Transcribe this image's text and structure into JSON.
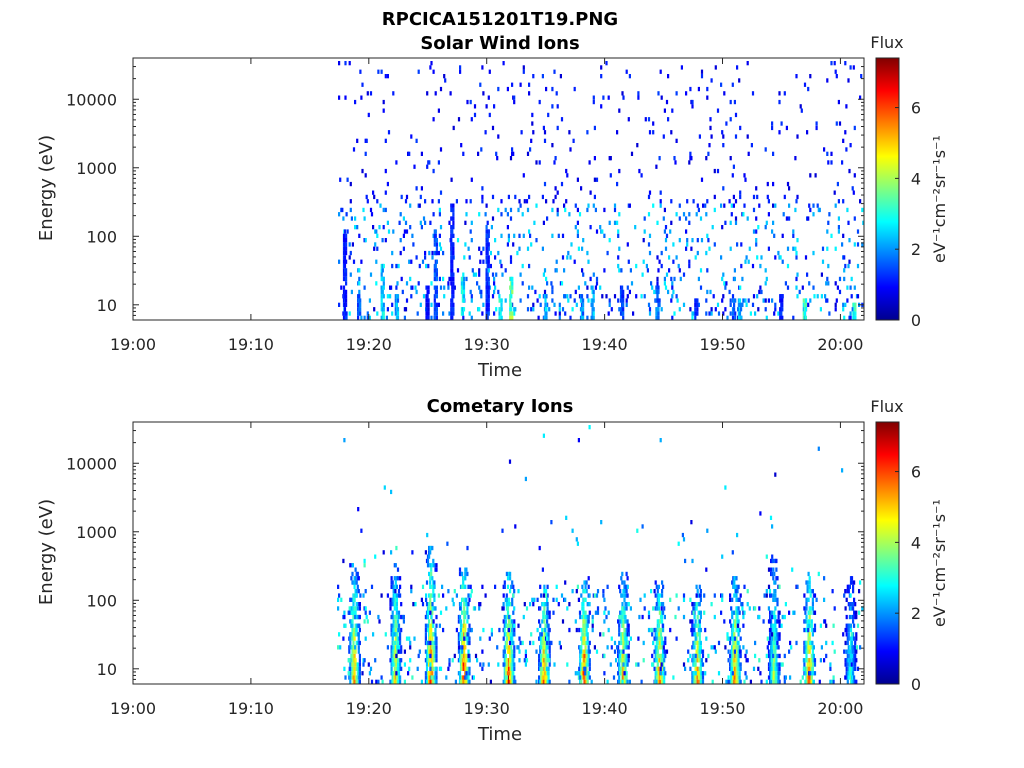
{
  "figure": {
    "title": "RPCICA151201T19.PNG"
  },
  "colorbar": {
    "title": "Flux",
    "label": "eV⁻¹cm⁻²sr⁻¹s⁻¹",
    "ticks": [
      0,
      2,
      4,
      6
    ],
    "range": [
      0,
      7.4
    ],
    "colormap": "jet"
  },
  "chart_data": [
    {
      "type": "heatmap",
      "title": "Solar Wind Ions",
      "xlabel": "Time",
      "ylabel": "Energy (eV)",
      "yscale": "log",
      "xlim": [
        "19:00",
        "20:02"
      ],
      "ylim": [
        6,
        40000
      ],
      "xticks": [
        "19:00",
        "19:10",
        "19:20",
        "19:30",
        "19:40",
        "19:50",
        "20:00"
      ],
      "yticks": [
        10,
        100,
        1000,
        10000
      ],
      "data_start": "19:17",
      "description_of_values": "sparse low flux (mostly 0.5-3) scattered 10 eV - 20 keV after 19:17, a few green spikes at low energy",
      "bands": [
        {
          "t": "19:17.8",
          "e_lo": 6,
          "e_hi": 120,
          "flux": 1.2
        },
        {
          "t": "19:19.0",
          "e_lo": 6,
          "e_hi": 15,
          "flux": 1.6
        },
        {
          "t": "19:21.0",
          "e_lo": 6,
          "e_hi": 40,
          "flux": 2.6
        },
        {
          "t": "19:22.2",
          "e_lo": 6,
          "e_hi": 15,
          "flux": 2.2
        },
        {
          "t": "19:24.8",
          "e_lo": 6,
          "e_hi": 20,
          "flux": 1.0
        },
        {
          "t": "19:25.5",
          "e_lo": 6,
          "e_hi": 130,
          "flux": 1.5
        },
        {
          "t": "19:26.9",
          "e_lo": 6,
          "e_hi": 280,
          "flux": 1.2
        },
        {
          "t": "19:27.8",
          "e_lo": 6,
          "e_hi": 25,
          "flux": 2.8
        },
        {
          "t": "19:29.9",
          "e_lo": 6,
          "e_hi": 120,
          "flux": 1.3
        },
        {
          "t": "19:31.0",
          "e_lo": 6,
          "e_hi": 12,
          "flux": 3.0
        },
        {
          "t": "19:31.9",
          "e_lo": 6,
          "e_hi": 25,
          "flux": 3.6
        },
        {
          "t": "19:34.8",
          "e_lo": 6,
          "e_hi": 15,
          "flux": 2.4
        },
        {
          "t": "19:37.9",
          "e_lo": 6,
          "e_hi": 14,
          "flux": 2.0
        },
        {
          "t": "19:38.8",
          "e_lo": 6,
          "e_hi": 20,
          "flux": 2.2
        },
        {
          "t": "19:41.3",
          "e_lo": 6,
          "e_hi": 18,
          "flux": 1.4
        },
        {
          "t": "19:44.3",
          "e_lo": 6,
          "e_hi": 18,
          "flux": 1.8
        },
        {
          "t": "19:47.6",
          "e_lo": 6,
          "e_hi": 12,
          "flux": 1.2
        },
        {
          "t": "19:50.8",
          "e_lo": 6,
          "e_hi": 15,
          "flux": 1.6
        },
        {
          "t": "19:51.3",
          "e_lo": 6,
          "e_hi": 12,
          "flux": 2.3
        },
        {
          "t": "19:54.8",
          "e_lo": 6,
          "e_hi": 14,
          "flux": 1.2
        },
        {
          "t": "19:56.8",
          "e_lo": 6,
          "e_hi": 12,
          "flux": 3.0
        },
        {
          "t": "20:01.0",
          "e_lo": 6,
          "e_hi": 10,
          "flux": 3.2
        }
      ]
    },
    {
      "type": "heatmap",
      "title": "Cometary Ions",
      "xlabel": "Time",
      "ylabel": "Energy (eV)",
      "yscale": "log",
      "xlim": [
        "19:00",
        "20:02"
      ],
      "ylim": [
        6,
        40000
      ],
      "xticks": [
        "19:00",
        "19:10",
        "19:20",
        "19:30",
        "19:40",
        "19:50",
        "20:00"
      ],
      "yticks": [
        10,
        100,
        1000,
        10000
      ],
      "data_start": "19:17",
      "description_of_values": "periodic bursts (~3.3 min period) with peak flux ~6 at 6-15 eV, decreasing to ~2-3 near 100-300 eV",
      "bursts": [
        {
          "t": "19:18.7",
          "e_hi": 330,
          "peak_flux": 5.5
        },
        {
          "t": "19:22.2",
          "e_hi": 350,
          "peak_flux": 5.0
        },
        {
          "t": "19:25.2",
          "e_hi": 600,
          "peak_flux": 6.2
        },
        {
          "t": "19:28.0",
          "e_hi": 300,
          "peak_flux": 6.4
        },
        {
          "t": "19:31.8",
          "e_hi": 250,
          "peak_flux": 6.4
        },
        {
          "t": "19:34.8",
          "e_hi": 160,
          "peak_flux": 6.0
        },
        {
          "t": "19:38.2",
          "e_hi": 200,
          "peak_flux": 6.2
        },
        {
          "t": "19:41.5",
          "e_hi": 250,
          "peak_flux": 5.4
        },
        {
          "t": "19:44.6",
          "e_hi": 180,
          "peak_flux": 5.8
        },
        {
          "t": "19:47.8",
          "e_hi": 150,
          "peak_flux": 5.8
        },
        {
          "t": "19:51.0",
          "e_hi": 200,
          "peak_flux": 6.0
        },
        {
          "t": "19:54.3",
          "e_hi": 420,
          "peak_flux": 4.2
        },
        {
          "t": "19:57.3",
          "e_hi": 250,
          "peak_flux": 6.0
        },
        {
          "t": "20:00.8",
          "e_hi": 200,
          "peak_flux": 3.5
        }
      ]
    }
  ]
}
